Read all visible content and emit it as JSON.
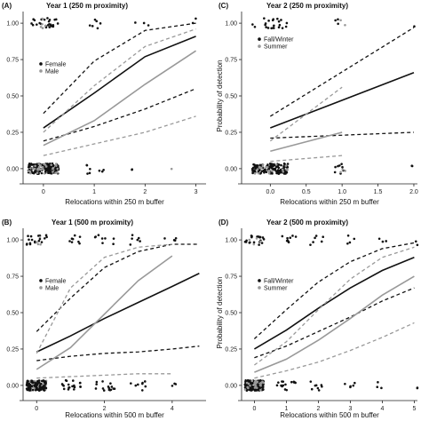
{
  "chart_data": [
    {
      "id": "A",
      "type": "line",
      "panel_label": "(A)",
      "title": "Year 1 (250 m proximity)",
      "xlabel": "Relocations within 250 m buffer",
      "ylabel": "",
      "xlim": [
        -0.4,
        3.2
      ],
      "ylim": [
        -0.08,
        1.08
      ],
      "xticks": [
        0,
        1,
        2,
        3
      ],
      "xticklabels": [
        "0",
        "1",
        "2",
        "3"
      ],
      "yticks": [
        0,
        0.25,
        0.5,
        0.75,
        1.0
      ],
      "yticklabels": [
        "0.00",
        "0.25",
        "0.50",
        "0.75",
        "1.00"
      ],
      "legend": {
        "placement": "left-middle",
        "items": [
          {
            "label": "Female",
            "color": "#111111"
          },
          {
            "label": "Male",
            "color": "#999999"
          }
        ]
      },
      "series": [
        {
          "name": "Female",
          "color": "#111111",
          "x": [
            0,
            1,
            2,
            3
          ],
          "y": [
            0.28,
            0.52,
            0.77,
            0.91
          ],
          "lower": [
            0.19,
            0.29,
            0.41,
            0.55
          ],
          "upper": [
            0.38,
            0.74,
            0.95,
            1.0
          ]
        },
        {
          "name": "Male",
          "color": "#999999",
          "x": [
            0,
            1,
            2,
            3
          ],
          "y": [
            0.16,
            0.33,
            0.58,
            0.81
          ],
          "lower": [
            0.09,
            0.17,
            0.25,
            0.36
          ],
          "upper": [
            0.25,
            0.57,
            0.84,
            0.96
          ]
        }
      ],
      "points": {
        "top": [
          {
            "x0": 0,
            "n": 26,
            "color": "#111111",
            "spread": 0.3
          },
          {
            "x0": 0,
            "n": 5,
            "color": "#999999",
            "spread": 0.1
          },
          {
            "x0": 1,
            "n": 6,
            "color": "#111111",
            "spread": 0.2
          },
          {
            "x0": 2,
            "n": 3,
            "color": "#111111",
            "spread": 0.2
          },
          {
            "x0": 3,
            "n": 2,
            "color": "#111111",
            "spread": 0.1
          }
        ],
        "bottom": [
          {
            "x0": 0,
            "n": 150,
            "color": "#111111",
            "spread": 0.3
          },
          {
            "x0": 0,
            "n": 30,
            "color": "#999999",
            "spread": 0.3
          },
          {
            "x0": 1,
            "n": 8,
            "color": "#111111",
            "spread": 0.2
          },
          {
            "x0": 1.8,
            "n": 2,
            "color": "#111111",
            "spread": 0.1
          },
          {
            "x0": 2.5,
            "n": 1,
            "color": "#999999",
            "spread": 0.05
          }
        ]
      }
    },
    {
      "id": "C",
      "type": "line",
      "panel_label": "(C)",
      "title": "Year 2 (250 m proximity)",
      "xlabel": "Relocations within 250 m buffer",
      "ylabel": "Probability of detection",
      "xlim": [
        -0.4,
        2.05
      ],
      "ylim": [
        -0.08,
        1.08
      ],
      "xticks": [
        0,
        0.5,
        1.0,
        1.5,
        2.0
      ],
      "xticklabels": [
        "0.0",
        "0.5",
        "1.0",
        "1.5",
        "2.0"
      ],
      "yticks": [
        0,
        0.25,
        0.5,
        0.75,
        1.0
      ],
      "yticklabels": [
        "0.00",
        "0.25",
        "0.50",
        "0.75",
        "1.00"
      ],
      "legend": {
        "placement": "top-left",
        "items": [
          {
            "label": "Fall/Winter",
            "color": "#111111"
          },
          {
            "label": "Summer",
            "color": "#999999"
          }
        ]
      },
      "series": [
        {
          "name": "Fall/Winter",
          "color": "#111111",
          "x": [
            0,
            2.0
          ],
          "y": [
            0.28,
            0.66
          ],
          "lower": [
            0.21,
            0.25
          ],
          "upper": [
            0.36,
            0.97
          ]
        },
        {
          "name": "Summer",
          "color": "#999999",
          "x": [
            0,
            1.0
          ],
          "y": [
            0.12,
            0.25
          ],
          "lower": [
            0.05,
            0.09
          ],
          "upper": [
            0.19,
            0.56
          ]
        }
      ],
      "points": {
        "top": [
          {
            "x0": 0,
            "n": 22,
            "color": "#111111",
            "spread": 0.25
          },
          {
            "x0": 0.95,
            "n": 3,
            "color": "#111111",
            "spread": 0.05
          },
          {
            "x0": 1.0,
            "n": 2,
            "color": "#999999",
            "spread": 0.05
          },
          {
            "x0": 2.0,
            "n": 1,
            "color": "#111111",
            "spread": 0.03
          }
        ],
        "bottom": [
          {
            "x0": 0,
            "n": 140,
            "color": "#111111",
            "spread": 0.25
          },
          {
            "x0": 0,
            "n": 20,
            "color": "#999999",
            "spread": 0.25
          },
          {
            "x0": 0.95,
            "n": 8,
            "color": "#111111",
            "spread": 0.08
          },
          {
            "x0": 1.0,
            "n": 3,
            "color": "#999999",
            "spread": 0.05
          },
          {
            "x0": 2.0,
            "n": 2,
            "color": "#111111",
            "spread": 0.03
          }
        ]
      }
    },
    {
      "id": "B",
      "type": "line",
      "panel_label": "(B)",
      "title": "Year 1 (500 m proximity)",
      "xlabel": "Relocations within 500 m buffer",
      "ylabel": "",
      "xlim": [
        -0.4,
        5.0
      ],
      "ylim": [
        -0.08,
        1.08
      ],
      "xticks": [
        0,
        2,
        4
      ],
      "xticklabels": [
        "0",
        "2",
        "4"
      ],
      "yticks": [
        0,
        0.25,
        0.5,
        0.75,
        1.0
      ],
      "yticklabels": [
        "0.00",
        "0.25",
        "0.50",
        "0.75",
        "1.00"
      ],
      "legend": {
        "placement": "left-middle",
        "items": [
          {
            "label": "Female",
            "color": "#111111"
          },
          {
            "label": "Male",
            "color": "#999999"
          }
        ]
      },
      "series": [
        {
          "name": "Female",
          "color": "#111111",
          "x": [
            0,
            1,
            2,
            3,
            4,
            4.8
          ],
          "y": [
            0.23,
            0.34,
            0.46,
            0.57,
            0.68,
            0.77
          ],
          "lower": [
            0.17,
            0.2,
            0.22,
            0.23,
            0.25,
            0.27
          ],
          "upper": [
            0.37,
            0.6,
            0.81,
            0.92,
            0.97,
            0.97
          ]
        },
        {
          "name": "Male",
          "color": "#999999",
          "x": [
            0,
            1,
            2,
            3,
            4
          ],
          "y": [
            0.11,
            0.26,
            0.49,
            0.72,
            0.89
          ],
          "lower": [
            0.05,
            0.06,
            0.07,
            0.08,
            0.08
          ],
          "upper": [
            0.22,
            0.67,
            0.88,
            0.95,
            0.97
          ]
        }
      ],
      "points": {
        "top": [
          {
            "x0": 0,
            "n": 18,
            "color": "#111111",
            "spread": 0.3
          },
          {
            "x0": 0,
            "n": 4,
            "color": "#999999",
            "spread": 0.2
          },
          {
            "x0": 1,
            "n": 8,
            "color": "#111111",
            "spread": 0.3
          },
          {
            "x0": 2,
            "n": 8,
            "color": "#111111",
            "spread": 0.3
          },
          {
            "x0": 3,
            "n": 6,
            "color": "#111111",
            "spread": 0.3
          },
          {
            "x0": 4,
            "n": 4,
            "color": "#111111",
            "spread": 0.25
          }
        ],
        "bottom": [
          {
            "x0": 0,
            "n": 80,
            "color": "#999999",
            "spread": 0.3
          },
          {
            "x0": 0,
            "n": 90,
            "color": "#111111",
            "spread": 0.3
          },
          {
            "x0": 1,
            "n": 20,
            "color": "#111111",
            "spread": 0.3
          },
          {
            "x0": 2,
            "n": 15,
            "color": "#111111",
            "spread": 0.3
          },
          {
            "x0": 3,
            "n": 8,
            "color": "#111111",
            "spread": 0.3
          },
          {
            "x0": 4,
            "n": 3,
            "color": "#111111",
            "spread": 0.2
          }
        ]
      }
    },
    {
      "id": "D",
      "type": "line",
      "panel_label": "(D)",
      "title": "Year 2 (500 m proximity)",
      "xlabel": "Relocations within 500 m buffer",
      "ylabel": "Probability of detection",
      "xlim": [
        -0.4,
        5.1
      ],
      "ylim": [
        -0.08,
        1.08
      ],
      "xticks": [
        0,
        1,
        2,
        3,
        4,
        5
      ],
      "xticklabels": [
        "0",
        "1",
        "2",
        "3",
        "4",
        "5"
      ],
      "yticks": [
        0,
        0.25,
        0.5,
        0.75,
        1.0
      ],
      "yticklabels": [
        "0.00",
        "0.25",
        "0.50",
        "0.75",
        "1.00"
      ],
      "legend": {
        "placement": "left-middle",
        "items": [
          {
            "label": "Fall/Winter",
            "color": "#111111"
          },
          {
            "label": "Summer",
            "color": "#999999"
          }
        ]
      },
      "series": [
        {
          "name": "Fall/Winter",
          "color": "#111111",
          "x": [
            0,
            1,
            2,
            3,
            4,
            5
          ],
          "y": [
            0.25,
            0.38,
            0.53,
            0.67,
            0.79,
            0.88
          ],
          "lower": [
            0.19,
            0.27,
            0.37,
            0.47,
            0.58,
            0.67
          ],
          "upper": [
            0.32,
            0.52,
            0.71,
            0.85,
            0.94,
            0.98
          ]
        },
        {
          "name": "Summer",
          "color": "#999999",
          "x": [
            0,
            1,
            2,
            3,
            4,
            5
          ],
          "y": [
            0.09,
            0.18,
            0.31,
            0.46,
            0.62,
            0.75
          ],
          "lower": [
            0.05,
            0.1,
            0.16,
            0.24,
            0.33,
            0.43
          ],
          "upper": [
            0.14,
            0.3,
            0.52,
            0.73,
            0.88,
            0.95
          ]
        }
      ],
      "points": {
        "top": [
          {
            "x0": 0,
            "n": 20,
            "color": "#111111",
            "spread": 0.3
          },
          {
            "x0": 0,
            "n": 4,
            "color": "#999999",
            "spread": 0.2
          },
          {
            "x0": 1,
            "n": 10,
            "color": "#111111",
            "spread": 0.3
          },
          {
            "x0": 2,
            "n": 6,
            "color": "#111111",
            "spread": 0.25
          },
          {
            "x0": 3,
            "n": 4,
            "color": "#111111",
            "spread": 0.25
          },
          {
            "x0": 4,
            "n": 3,
            "color": "#111111",
            "spread": 0.2
          },
          {
            "x0": 5,
            "n": 2,
            "color": "#111111",
            "spread": 0.1
          }
        ],
        "bottom": [
          {
            "x0": 0,
            "n": 150,
            "color": "#111111",
            "spread": 0.3
          },
          {
            "x0": 0,
            "n": 25,
            "color": "#999999",
            "spread": 0.3
          },
          {
            "x0": 1,
            "n": 15,
            "color": "#111111",
            "spread": 0.3
          },
          {
            "x0": 2,
            "n": 8,
            "color": "#111111",
            "spread": 0.25
          },
          {
            "x0": 3,
            "n": 5,
            "color": "#111111",
            "spread": 0.2
          },
          {
            "x0": 4,
            "n": 3,
            "color": "#111111",
            "spread": 0.2
          },
          {
            "x0": 5,
            "n": 2,
            "color": "#111111",
            "spread": 0.1
          }
        ]
      }
    }
  ]
}
